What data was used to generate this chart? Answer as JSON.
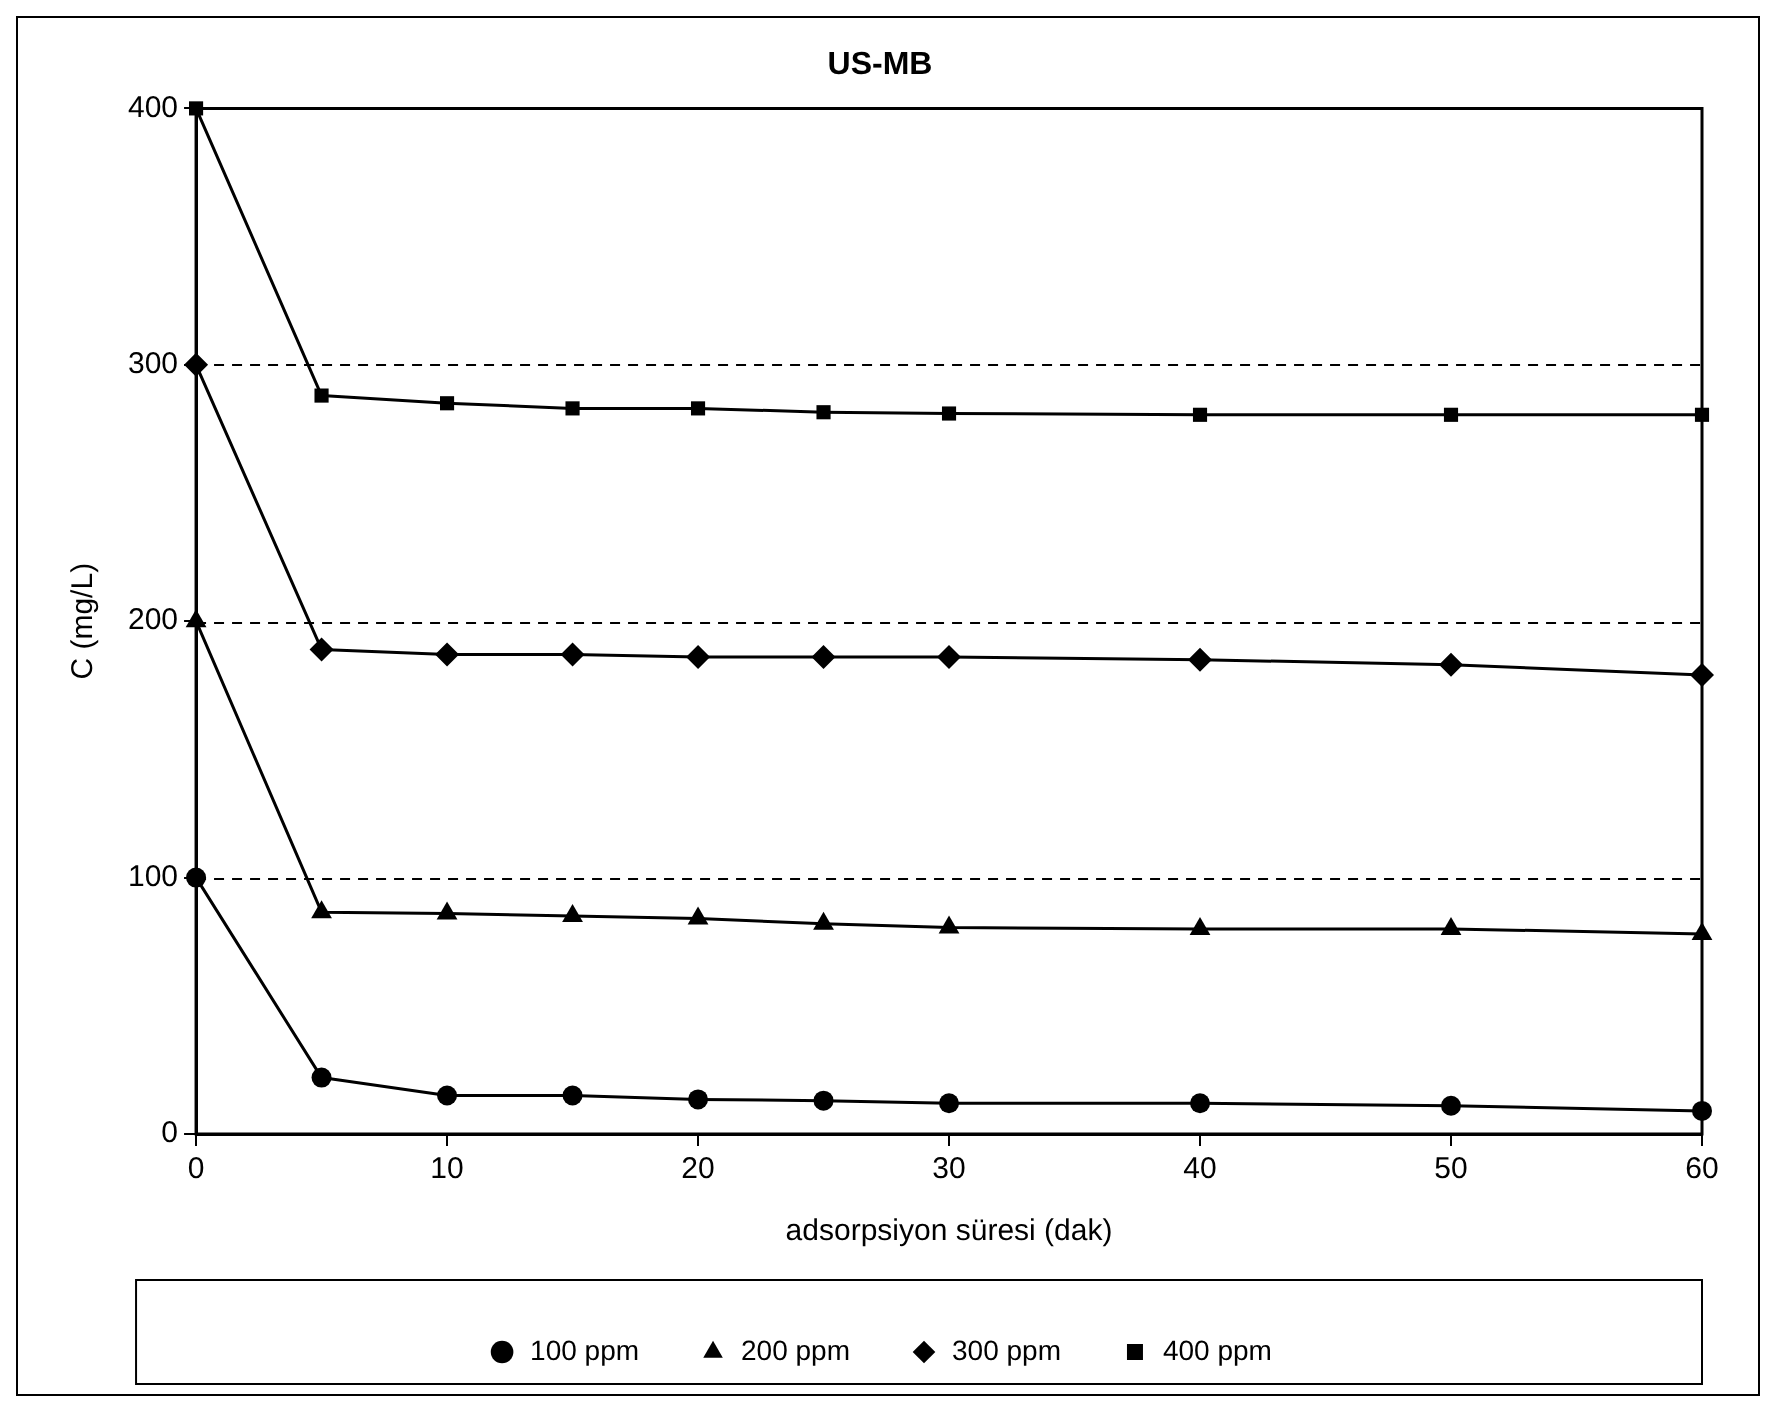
{
  "chart_data": {
    "type": "line",
    "title": "US-MB",
    "xlabel": "adsorpsiyon süresi (dak)",
    "ylabel": "C (mg/L)",
    "x": [
      0,
      5,
      10,
      15,
      20,
      25,
      30,
      40,
      50,
      60
    ],
    "series": [
      {
        "name": "100 ppm",
        "color": "#000000",
        "marker": "circle",
        "values": [
          100,
          22,
          15,
          15,
          13.5,
          13,
          12,
          12,
          11,
          9
        ]
      },
      {
        "name": "200 ppm",
        "color": "#000000",
        "marker": "triangle",
        "values": [
          200,
          86.5,
          86,
          85,
          84,
          82,
          80.5,
          80,
          80,
          78
        ]
      },
      {
        "name": "300 ppm",
        "color": "#000000",
        "marker": "diamond",
        "values": [
          300,
          189,
          187,
          187,
          186,
          186,
          186,
          185,
          183,
          179
        ]
      },
      {
        "name": "400 ppm",
        "color": "#000000",
        "marker": "square",
        "values": [
          400,
          288,
          285,
          283,
          283,
          281.5,
          281,
          280.5,
          280.5,
          280.5
        ]
      }
    ],
    "xlim": [
      0,
      60
    ],
    "xticks": [
      0,
      10,
      20,
      30,
      40,
      50,
      60
    ],
    "ylim": [
      0,
      400
    ],
    "yticks": [
      0,
      100,
      200,
      300,
      400
    ],
    "grid": "y",
    "legend": "bottom",
    "line_style": "solid"
  }
}
